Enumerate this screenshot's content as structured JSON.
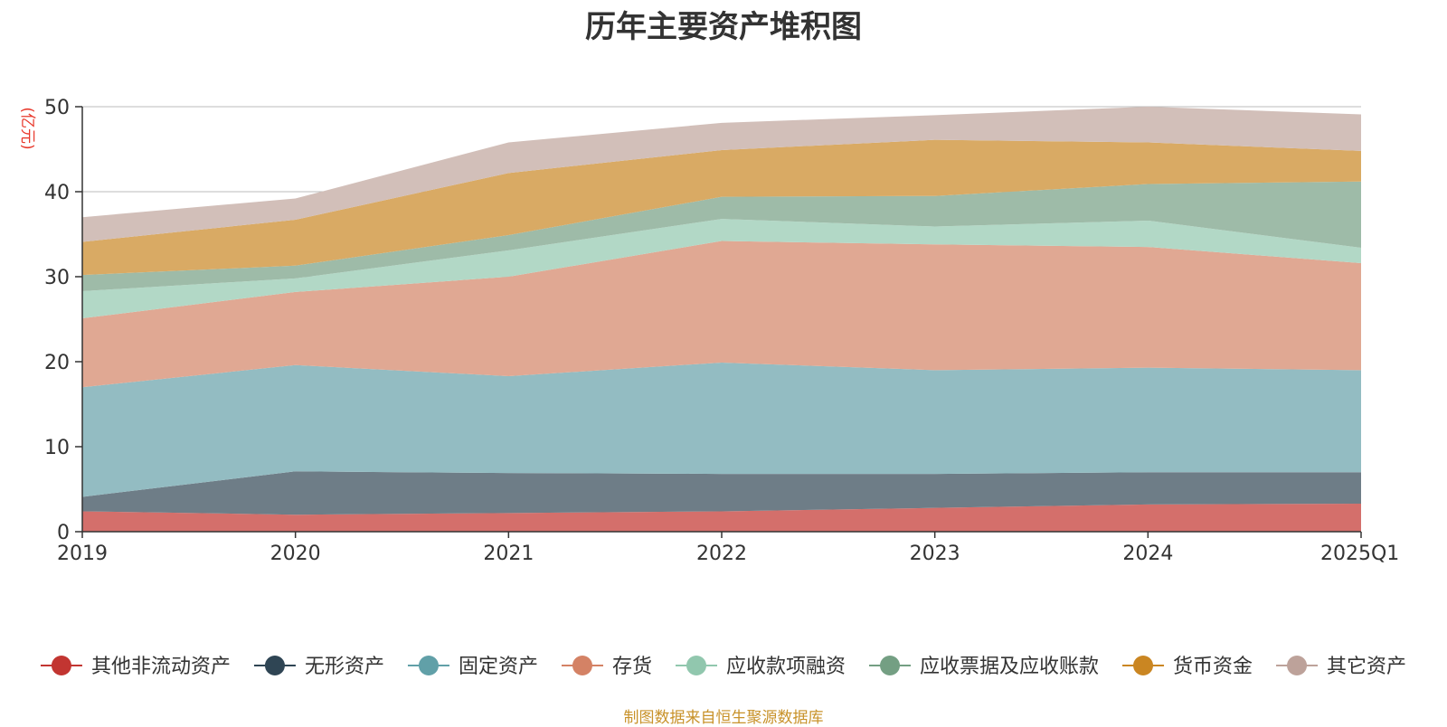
{
  "chart_data": {
    "type": "area",
    "stacked": true,
    "title": "历年主要资产堆积图",
    "ylabel": "(亿元)",
    "xlabel": "",
    "ylim": [
      0,
      50
    ],
    "yticks": [
      0,
      10,
      20,
      30,
      40,
      50
    ],
    "categories": [
      "2019",
      "2020",
      "2021",
      "2022",
      "2023",
      "2024",
      "2025Q1"
    ],
    "grid": true,
    "legend_position": "bottom",
    "series": [
      {
        "name": "其他非流动资产",
        "color": "#c23531",
        "fill": "#d46f6b",
        "values": [
          2.4,
          2.0,
          2.2,
          2.4,
          2.8,
          3.2,
          3.3
        ]
      },
      {
        "name": "无形资产",
        "color": "#2f4554",
        "fill": "#6e7d87",
        "values": [
          1.7,
          5.1,
          4.7,
          4.4,
          4.0,
          3.8,
          3.7
        ]
      },
      {
        "name": "固定资产",
        "color": "#61a0a8",
        "fill": "#93bcc2",
        "values": [
          12.9,
          12.5,
          11.4,
          13.1,
          12.2,
          12.3,
          12.0
        ]
      },
      {
        "name": "存货",
        "color": "#d48265",
        "fill": "#e0a893",
        "values": [
          8.1,
          8.6,
          11.7,
          14.3,
          14.8,
          14.2,
          12.6
        ]
      },
      {
        "name": "应收款项融资",
        "color": "#91c7ae",
        "fill": "#b2d8c6",
        "values": [
          3.2,
          1.6,
          3.1,
          2.6,
          2.1,
          3.1,
          1.8
        ]
      },
      {
        "name": "应收票据及应收账款",
        "color": "#749f83",
        "fill": "#9ebba8",
        "values": [
          1.9,
          1.5,
          1.8,
          2.6,
          3.6,
          4.3,
          7.8
        ]
      },
      {
        "name": "货币资金",
        "color": "#ca8622",
        "fill": "#d9aa64",
        "values": [
          3.9,
          5.4,
          7.3,
          5.5,
          6.6,
          4.9,
          3.6
        ]
      },
      {
        "name": "其它资产",
        "color": "#bda29a",
        "fill": "#d2bfb9",
        "values": [
          2.9,
          2.5,
          3.6,
          3.2,
          2.9,
          4.2,
          4.3
        ]
      }
    ]
  },
  "source": {
    "text": "制图数据来自恒生聚源数据库",
    "color": "#c8922a"
  },
  "colors": {
    "axis": "#333333",
    "grid": "#bbbbbb",
    "ylabel": "#e8382b",
    "title": "#333333"
  }
}
